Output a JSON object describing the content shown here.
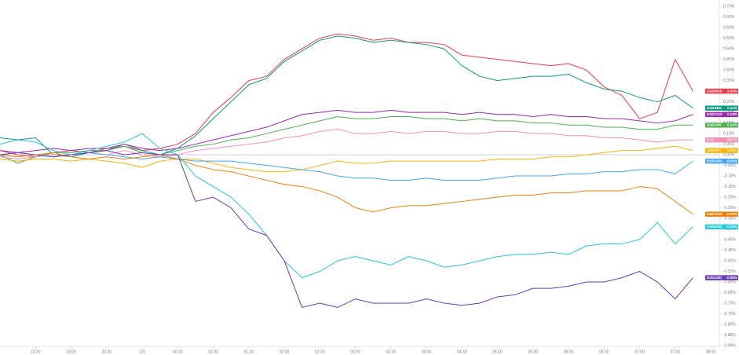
{
  "chart_data": {
    "type": "line",
    "x": [
      0,
      15,
      30,
      45,
      60,
      75,
      90,
      105,
      120,
      135,
      150,
      165,
      180,
      195,
      210,
      225,
      240,
      255,
      270,
      285,
      300,
      315,
      330,
      345,
      360,
      375,
      390,
      405,
      420,
      435,
      450,
      465,
      480,
      495,
      510,
      525,
      540,
      555,
      570,
      585
    ],
    "xlim": [
      0,
      600
    ],
    "xticks": [
      {
        "value": 30,
        "label": "22:30"
      },
      {
        "value": 60,
        "label": "23:00"
      },
      {
        "value": 90,
        "label": "23:30"
      },
      120,
      {
        "value": 150,
        "label": "00:30"
      },
      {
        "value": 180,
        "label": "01:00"
      },
      {
        "value": 210,
        "label": "01:30"
      },
      {
        "value": 240,
        "label": "02:00"
      },
      {
        "value": 270,
        "label": "02:30"
      },
      {
        "value": 300,
        "label": "03:00"
      },
      {
        "value": 330,
        "label": "03:30"
      },
      {
        "value": 360,
        "label": "04:00"
      },
      {
        "value": 390,
        "label": "04:30"
      },
      {
        "value": 420,
        "label": "05:00"
      },
      {
        "value": 450,
        "label": "05:30"
      },
      {
        "value": 480,
        "label": "06:00"
      },
      {
        "value": 510,
        "label": "06:30"
      },
      {
        "value": 540,
        "label": "07:00"
      },
      {
        "value": 570,
        "label": "07:30"
      },
      {
        "value": 600,
        "label": "08:00"
      }
    ],
    "ylim": [
      -0.9,
      0.73
    ],
    "yticks": [
      {
        "value": 0.7,
        "label": "0.70%"
      },
      {
        "value": 0.65,
        "label": "0.65%"
      },
      {
        "value": 0.6,
        "label": "0.60%"
      },
      {
        "value": 0.55,
        "label": "0.55%"
      },
      {
        "value": 0.5,
        "label": "0.50%"
      },
      {
        "value": 0.45,
        "label": "0.45%"
      },
      {
        "value": 0.4,
        "label": "0.40%"
      },
      {
        "value": 0.35,
        "label": "0.35%"
      },
      {
        "value": 0.3,
        "label": "0.30%"
      },
      {
        "value": 0.25,
        "label": "0.25%"
      },
      {
        "value": 0.2,
        "label": "0.20%"
      },
      {
        "value": 0.15,
        "label": "0.15%"
      },
      {
        "value": 0.1,
        "label": "0.10%"
      },
      {
        "value": 0.05,
        "label": "0.05%"
      },
      {
        "value": 0,
        "label": "0.00%"
      },
      {
        "value": -0.05,
        "label": "-0.05%"
      },
      {
        "value": -0.1,
        "label": "-0.10%"
      },
      {
        "value": -0.15,
        "label": "-0.15%"
      },
      {
        "value": -0.2,
        "label": "-0.20%"
      },
      {
        "value": -0.25,
        "label": "-0.25%"
      },
      {
        "value": -0.3,
        "label": "-0.30%"
      },
      {
        "value": -0.35,
        "label": "-0.35%"
      },
      {
        "value": -0.4,
        "label": "-0.40%"
      },
      {
        "value": -0.45,
        "label": "-0.45%"
      },
      {
        "value": -0.5,
        "label": "-0.50%"
      },
      {
        "value": -0.55,
        "label": "-0.55%"
      },
      {
        "value": -0.6,
        "label": "-0.60%"
      },
      {
        "value": -0.65,
        "label": "-0.65%"
      },
      {
        "value": -0.7,
        "label": "-0.70%"
      },
      {
        "value": -0.75,
        "label": "-0.75%"
      },
      {
        "value": -0.8,
        "label": "-0.80%"
      },
      {
        "value": -0.85,
        "label": "-0.85%"
      },
      {
        "value": -0.9,
        "label": "-0.90%"
      }
    ],
    "grid": false,
    "series": [
      {
        "name": "USDNOK",
        "color": "#f23645",
        "end_label": "0.30%",
        "values": [
          0.02,
          0.0,
          -0.01,
          0.01,
          0.02,
          0.01,
          0.03,
          0.04,
          0.02,
          0.03,
          0.05,
          0.1,
          0.2,
          0.27,
          0.35,
          0.37,
          0.45,
          0.5,
          0.55,
          0.57,
          0.56,
          0.54,
          0.55,
          0.53,
          0.53,
          0.52,
          0.47,
          0.46,
          0.45,
          0.44,
          0.43,
          0.42,
          0.43,
          0.4,
          0.32,
          0.28,
          0.17,
          0.2,
          0.45,
          0.3
        ]
      },
      {
        "name": "USDSEK",
        "color": "#089981",
        "end_label": "0.22%",
        "values": [
          0.08,
          0.07,
          0.08,
          0.0,
          -0.01,
          0.01,
          0.02,
          0.05,
          0.02,
          0.0,
          0.03,
          0.09,
          0.17,
          0.25,
          0.33,
          0.36,
          0.44,
          0.49,
          0.54,
          0.56,
          0.55,
          0.53,
          0.54,
          0.53,
          0.52,
          0.5,
          0.42,
          0.37,
          0.35,
          0.36,
          0.37,
          0.37,
          0.38,
          0.34,
          0.31,
          0.3,
          0.27,
          0.25,
          0.28,
          0.22
        ]
      },
      {
        "name": "USDCAD",
        "color": "#9c27b0",
        "end_label": "0.19%",
        "values": [
          0.02,
          0.01,
          0.02,
          0.03,
          0.02,
          0.03,
          0.03,
          0.05,
          0.03,
          0.02,
          0.03,
          0.05,
          0.07,
          0.09,
          0.11,
          0.13,
          0.16,
          0.19,
          0.2,
          0.21,
          0.2,
          0.2,
          0.21,
          0.2,
          0.2,
          0.2,
          0.19,
          0.2,
          0.19,
          0.19,
          0.18,
          0.19,
          0.18,
          0.18,
          0.17,
          0.17,
          0.16,
          0.15,
          0.16,
          0.19
        ]
      },
      {
        "name": "USDCHF",
        "color": "#4caf50",
        "end_label": "0.14%",
        "values": [
          0.0,
          -0.04,
          -0.01,
          0.01,
          0.01,
          0.02,
          0.02,
          0.04,
          0.01,
          0.0,
          0.02,
          0.04,
          0.05,
          0.07,
          0.08,
          0.1,
          0.12,
          0.14,
          0.16,
          0.18,
          0.17,
          0.17,
          0.18,
          0.18,
          0.17,
          0.17,
          0.16,
          0.17,
          0.16,
          0.16,
          0.15,
          0.15,
          0.14,
          0.14,
          0.13,
          0.13,
          0.12,
          0.12,
          0.14,
          0.14
        ]
      },
      {
        "name": "DXY",
        "color": "#f48fb1",
        "end_label": "0.07%",
        "values": [
          -0.01,
          -0.02,
          -0.01,
          0.0,
          0.0,
          0.01,
          0.0,
          0.02,
          0.0,
          -0.01,
          0.0,
          0.02,
          0.03,
          0.04,
          0.05,
          0.06,
          0.08,
          0.09,
          0.11,
          0.12,
          0.1,
          0.1,
          0.11,
          0.1,
          0.11,
          0.11,
          0.1,
          0.1,
          0.11,
          0.11,
          0.1,
          0.1,
          0.09,
          0.09,
          0.08,
          0.08,
          0.07,
          0.06,
          0.07,
          0.07
        ]
      },
      {
        "name": "USDJPY",
        "color": "#ffb300",
        "end_label": "0.02%",
        "values": [
          -0.02,
          -0.03,
          -0.02,
          -0.02,
          -0.03,
          -0.02,
          -0.03,
          -0.04,
          -0.06,
          -0.03,
          -0.02,
          -0.02,
          -0.04,
          -0.06,
          -0.07,
          -0.08,
          -0.08,
          -0.07,
          -0.05,
          -0.03,
          -0.04,
          -0.04,
          -0.03,
          -0.03,
          -0.03,
          -0.03,
          -0.03,
          -0.03,
          -0.02,
          -0.02,
          -0.02,
          -0.01,
          -0.01,
          0.0,
          0.01,
          0.02,
          0.02,
          0.03,
          0.04,
          0.02
        ]
      },
      {
        "name": "EURUSD",
        "color": "#42a5f5",
        "end_label": "-0.03%",
        "values": [
          0.0,
          0.01,
          0.0,
          -0.01,
          0.0,
          0.01,
          0.0,
          -0.01,
          -0.02,
          -0.01,
          -0.02,
          -0.03,
          -0.03,
          -0.03,
          -0.04,
          -0.05,
          -0.06,
          -0.07,
          -0.08,
          -0.1,
          -0.11,
          -0.11,
          -0.12,
          -0.12,
          -0.11,
          -0.12,
          -0.12,
          -0.12,
          -0.11,
          -0.1,
          -0.1,
          -0.1,
          -0.09,
          -0.09,
          -0.08,
          -0.08,
          -0.07,
          -0.07,
          -0.09,
          -0.03
        ]
      },
      {
        "name": "GBPUSD",
        "color": "#f57c00",
        "end_label": "-0.28%",
        "values": [
          0.0,
          -0.01,
          0.0,
          0.01,
          -0.01,
          -0.02,
          -0.01,
          -0.02,
          -0.01,
          0.0,
          -0.02,
          -0.05,
          -0.07,
          -0.08,
          -0.1,
          -0.12,
          -0.14,
          -0.15,
          -0.17,
          -0.2,
          -0.25,
          -0.27,
          -0.25,
          -0.24,
          -0.24,
          -0.23,
          -0.22,
          -0.21,
          -0.2,
          -0.19,
          -0.19,
          -0.18,
          -0.18,
          -0.17,
          -0.17,
          -0.17,
          -0.15,
          -0.16,
          -0.22,
          -0.28
        ]
      },
      {
        "name": "AUDUSD",
        "color": "#26c6da",
        "end_label": "-0.34%",
        "values": [
          0.05,
          0.07,
          0.06,
          0.02,
          0.0,
          0.02,
          0.04,
          0.06,
          0.1,
          0.03,
          0.0,
          -0.1,
          -0.15,
          -0.2,
          -0.28,
          -0.38,
          -0.5,
          -0.58,
          -0.55,
          -0.5,
          -0.48,
          -0.5,
          -0.52,
          -0.48,
          -0.5,
          -0.53,
          -0.52,
          -0.5,
          -0.48,
          -0.47,
          -0.47,
          -0.46,
          -0.47,
          -0.43,
          -0.42,
          -0.42,
          -0.4,
          -0.32,
          -0.42,
          -0.34
        ]
      },
      {
        "name": "NZDUSD",
        "color": "#673ab7",
        "end_label": "-0.58%",
        "values": [
          0.0,
          0.01,
          0.0,
          -0.01,
          0.0,
          0.01,
          0.02,
          0.0,
          0.01,
          0.0,
          0.0,
          -0.22,
          -0.2,
          -0.25,
          -0.35,
          -0.38,
          -0.5,
          -0.72,
          -0.7,
          -0.72,
          -0.68,
          -0.7,
          -0.7,
          -0.7,
          -0.68,
          -0.7,
          -0.71,
          -0.7,
          -0.67,
          -0.66,
          -0.63,
          -0.63,
          -0.62,
          -0.6,
          -0.6,
          -0.58,
          -0.55,
          -0.6,
          -0.68,
          -0.58
        ]
      }
    ]
  }
}
